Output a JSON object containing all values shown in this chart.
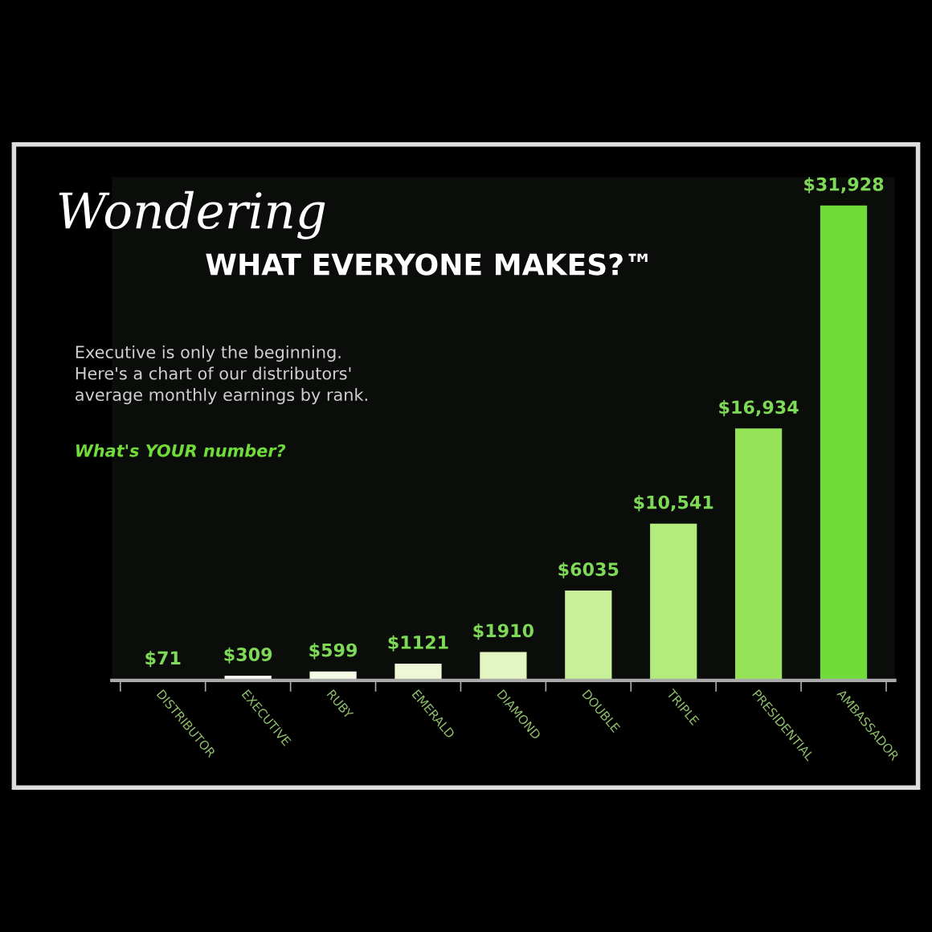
{
  "chart_data": {
    "type": "bar",
    "title": "Wondering",
    "subtitle": "WHAT EVERYONE MAKES?™",
    "annotations": [
      "Executive is only the beginning.\nHere's a chart of our distributors'\naverage monthly earnings by rank.",
      "What's YOUR number?"
    ],
    "categories": [
      "DISTRIBUTOR",
      "EXECUTIVE",
      "RUBY",
      "EMERALD",
      "DIAMOND",
      "DOUBLE",
      "TRIPLE",
      "PRESIDENTIAL",
      "AMBASSADOR"
    ],
    "values": [
      71,
      309,
      599,
      1121,
      1910,
      6035,
      10541,
      16934,
      31928
    ],
    "colors": [
      "#ffffff",
      "#fbfdf5",
      "#f4fbe4",
      "#eef8d6",
      "#e3f5c0",
      "#c8f098",
      "#b3ec7c",
      "#95e458",
      "#6fdc3a"
    ],
    "value_labels": [
      "$71",
      "$309",
      "$599",
      "$1121",
      "$1910",
      "$6035",
      "$10,541",
      "$16,934",
      "$31,928"
    ]
  }
}
